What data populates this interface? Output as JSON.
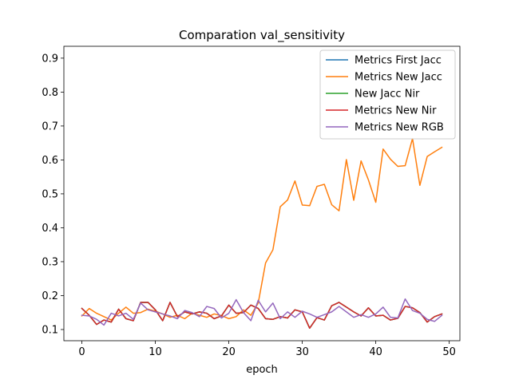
{
  "chart_data": {
    "type": "line",
    "title": "Comparation val_sensitivity",
    "xlabel": "epoch",
    "ylabel": "",
    "xlim": [
      -2.45,
      51.45
    ],
    "ylim": [
      0.067,
      0.935
    ],
    "xticks": [
      0,
      10,
      20,
      30,
      40,
      50
    ],
    "yticks": [
      0.1,
      0.2,
      0.3,
      0.4,
      0.5,
      0.6,
      0.7,
      0.8,
      0.9
    ],
    "legend_position": "top-right",
    "x": [
      0,
      1,
      2,
      3,
      4,
      5,
      6,
      7,
      8,
      9,
      10,
      11,
      12,
      13,
      14,
      15,
      16,
      17,
      18,
      19,
      20,
      21,
      22,
      23,
      24,
      25,
      26,
      27,
      28,
      29,
      30,
      31,
      32,
      33,
      34,
      35,
      36,
      37,
      38,
      39,
      40,
      41,
      42,
      43,
      44,
      45,
      46,
      47,
      48,
      49
    ],
    "series": [
      {
        "name": "Metrics First Jacc",
        "color": "#1f77b4",
        "values": [
          0.162,
          0.142,
          0.115,
          0.128,
          0.122,
          0.16,
          0.132,
          0.126,
          0.18,
          0.18,
          0.158,
          0.126,
          0.18,
          0.138,
          0.152,
          0.146,
          0.152,
          0.148,
          0.132,
          0.14,
          0.172,
          0.148,
          0.15,
          0.172,
          0.162,
          0.132,
          0.13,
          0.138,
          0.134,
          0.158,
          0.152,
          0.104,
          0.135,
          0.128,
          0.17,
          0.18,
          0.166,
          0.152,
          0.14,
          0.164,
          0.14,
          0.142,
          0.128,
          0.133,
          0.168,
          0.164,
          0.15,
          0.122,
          0.138,
          0.146
        ]
      },
      {
        "name": "Metrics New Jacc",
        "color": "#ff7f0e",
        "values": [
          0.14,
          0.162,
          0.148,
          0.138,
          0.128,
          0.148,
          0.166,
          0.148,
          0.15,
          0.16,
          0.154,
          0.146,
          0.136,
          0.142,
          0.132,
          0.148,
          0.142,
          0.136,
          0.146,
          0.141,
          0.132,
          0.138,
          0.158,
          0.142,
          0.178,
          0.296,
          0.335,
          0.462,
          0.482,
          0.538,
          0.467,
          0.465,
          0.522,
          0.528,
          0.468,
          0.45,
          0.601,
          0.481,
          0.597,
          0.541,
          0.475,
          0.632,
          0.602,
          0.581,
          0.583,
          0.663,
          0.525,
          0.61,
          0.624,
          0.637
        ]
      },
      {
        "name": "New Jacc Nir",
        "color": "#2ca02c",
        "values": [
          0.162,
          0.142,
          0.115,
          0.128,
          0.122,
          0.16,
          0.132,
          0.126,
          0.18,
          0.18,
          0.158,
          0.126,
          0.18,
          0.138,
          0.152,
          0.146,
          0.152,
          0.148,
          0.132,
          0.14,
          0.172,
          0.148,
          0.15,
          0.172,
          0.162,
          0.132,
          0.13,
          0.138,
          0.134,
          0.158,
          0.152,
          0.104,
          0.135,
          0.128,
          0.17,
          0.18,
          0.166,
          0.152,
          0.14,
          0.164,
          0.14,
          0.142,
          0.128,
          0.133,
          0.168,
          0.164,
          0.15,
          0.122,
          0.138,
          0.146
        ]
      },
      {
        "name": "Metrics New Nir",
        "color": "#d62728",
        "values": [
          0.162,
          0.142,
          0.115,
          0.128,
          0.122,
          0.16,
          0.132,
          0.126,
          0.18,
          0.18,
          0.158,
          0.126,
          0.18,
          0.138,
          0.152,
          0.146,
          0.152,
          0.148,
          0.132,
          0.14,
          0.172,
          0.148,
          0.15,
          0.172,
          0.162,
          0.132,
          0.13,
          0.138,
          0.134,
          0.158,
          0.152,
          0.104,
          0.135,
          0.128,
          0.17,
          0.18,
          0.166,
          0.152,
          0.14,
          0.164,
          0.14,
          0.142,
          0.128,
          0.133,
          0.168,
          0.164,
          0.15,
          0.122,
          0.138,
          0.146
        ]
      },
      {
        "name": "Metrics New RGB",
        "color": "#9467bd",
        "values": [
          0.142,
          0.14,
          0.13,
          0.113,
          0.148,
          0.14,
          0.148,
          0.13,
          0.178,
          0.158,
          0.152,
          0.146,
          0.14,
          0.132,
          0.156,
          0.15,
          0.138,
          0.168,
          0.162,
          0.134,
          0.148,
          0.188,
          0.15,
          0.126,
          0.186,
          0.152,
          0.178,
          0.132,
          0.152,
          0.136,
          0.154,
          0.146,
          0.136,
          0.144,
          0.152,
          0.168,
          0.152,
          0.136,
          0.144,
          0.136,
          0.146,
          0.166,
          0.136,
          0.134,
          0.19,
          0.156,
          0.148,
          0.13,
          0.124,
          0.142
        ]
      }
    ]
  }
}
